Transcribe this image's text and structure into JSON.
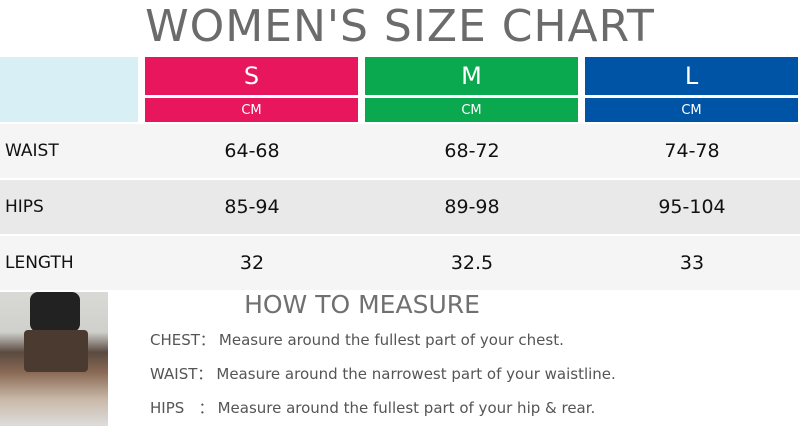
{
  "title": "WOMEN'S SIZE CHART",
  "table": {
    "sizes": [
      {
        "label": "S",
        "unit": "CM",
        "color": "#e8175d"
      },
      {
        "label": "M",
        "unit": "CM",
        "color": "#0aa84f"
      },
      {
        "label": "L",
        "unit": "CM",
        "color": "#0054a6"
      }
    ],
    "rows": [
      [
        "WAIST",
        "64-68",
        "68-72",
        "74-78"
      ],
      [
        "HIPS",
        "85-94",
        "89-98",
        "95-104"
      ],
      [
        "LENGTH",
        "32",
        "32.5",
        "33"
      ]
    ]
  },
  "measure": {
    "title": "HOW TO MEASURE",
    "items": [
      {
        "label": "CHEST：",
        "text": "Measure around the fullest part of your chest."
      },
      {
        "label": "WAIST：",
        "text": "Measure around the narrowest part of your waistline."
      },
      {
        "label": "HIPS   ：",
        "text": "Measure around the fullest part of your hip & rear."
      }
    ]
  }
}
